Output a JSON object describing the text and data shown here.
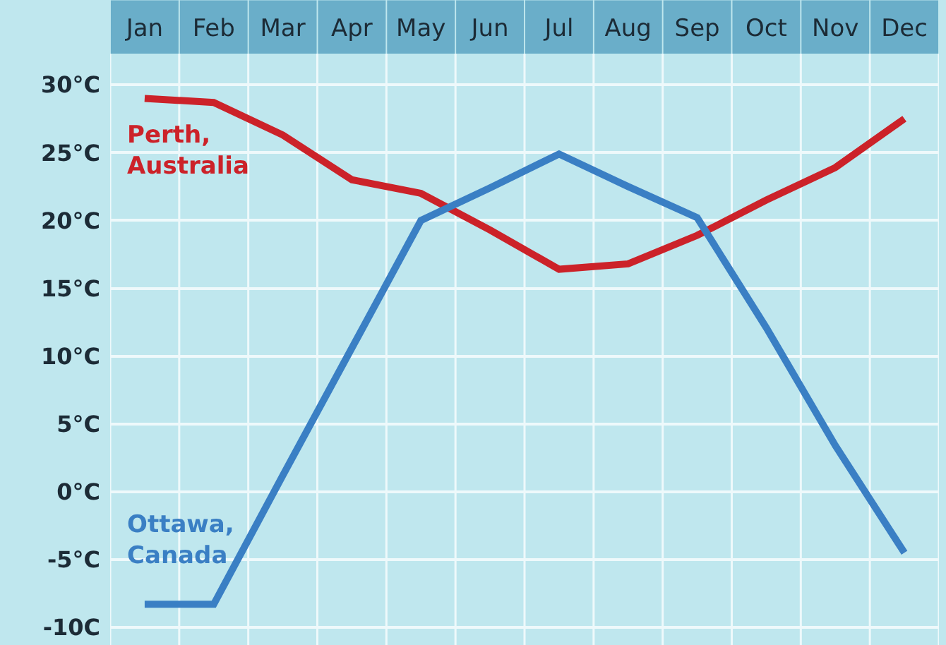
{
  "chart_data": {
    "type": "line",
    "categories": [
      "Jan",
      "Feb",
      "Mar",
      "Apr",
      "May",
      "Jun",
      "Jul",
      "Aug",
      "Sep",
      "Oct",
      "Nov",
      "Dec"
    ],
    "ylim": [
      -11.3,
      32.3
    ],
    "yticks": [
      {
        "value": 30,
        "label": "30°C"
      },
      {
        "value": 25,
        "label": "25°C"
      },
      {
        "value": 20,
        "label": "20°C"
      },
      {
        "value": 15,
        "label": "15°C"
      },
      {
        "value": 10,
        "label": "10°C"
      },
      {
        "value": 5,
        "label": "5°C"
      },
      {
        "value": 0,
        "label": "0°C"
      },
      {
        "value": -5,
        "label": "-5°C"
      },
      {
        "value": -10,
        "label": "-10C"
      }
    ],
    "grid": true,
    "legend": false,
    "marker": "none",
    "line_style": "solid",
    "series": [
      {
        "name": "Perth, Australia",
        "color": "#cc2229",
        "values": [
          29,
          28.7,
          26.3,
          23.0,
          22.0,
          19.3,
          16.4,
          16.8,
          18.9,
          21.5,
          23.9,
          27.5
        ]
      },
      {
        "name": "Ottawa, Canada",
        "color": "#3a7fc4",
        "values": [
          -8.3,
          -8.3,
          1.2,
          10.6,
          20.0,
          22.4,
          24.9,
          22.5,
          20.2,
          12.1,
          3.4,
          -4.5
        ]
      }
    ]
  }
}
